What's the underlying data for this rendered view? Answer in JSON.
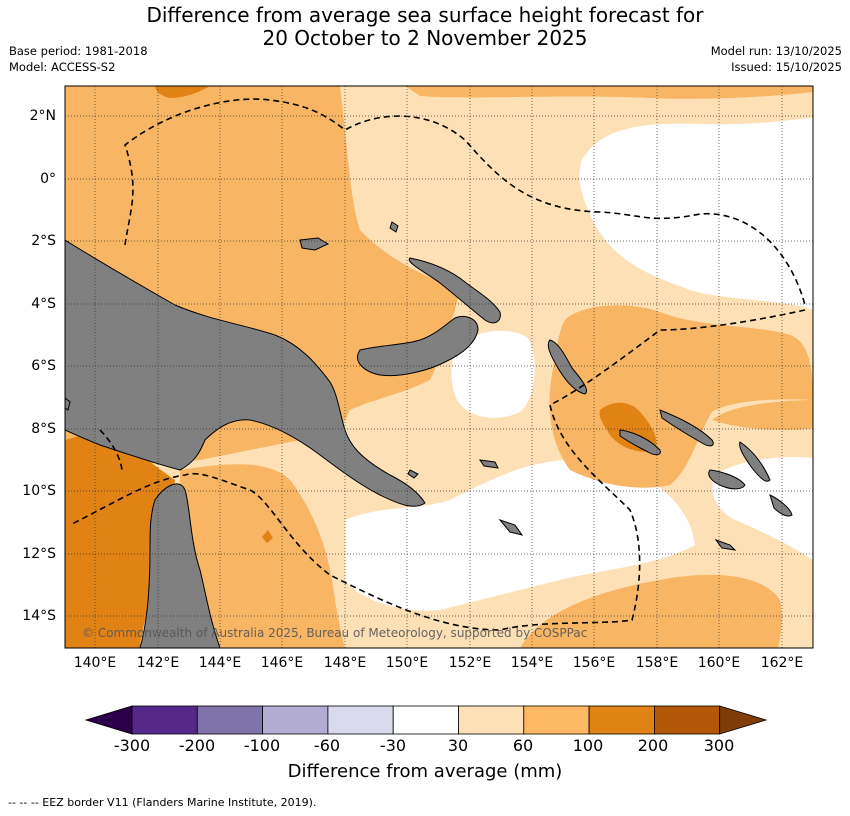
{
  "title": {
    "line1": "Difference from average sea surface height forecast for",
    "line2": "20 October to 2 November 2025"
  },
  "meta_left": {
    "base_period": "Base period: 1981-2018",
    "model": "Model: ACCESS-S2"
  },
  "meta_right": {
    "model_run": "Model run: 13/10/2025",
    "issued": "Issued: 15/10/2025"
  },
  "map": {
    "latitude_labels": [
      "2°N",
      "0°",
      "2°S",
      "4°S",
      "6°S",
      "8°S",
      "10°S",
      "12°S",
      "14°S"
    ],
    "longitude_labels": [
      "140°E",
      "142°E",
      "144°E",
      "146°E",
      "148°E",
      "150°E",
      "152°E",
      "154°E",
      "156°E",
      "158°E",
      "160°E",
      "162°E"
    ],
    "copyright": "© Commonwealth of Australia 2025, Bureau of Meteorology, supported by COSPPac",
    "colors": {
      "land": "#808080",
      "band_30_60": "#fde0b6",
      "band_60_100": "#f8b563",
      "band_100_200": "#e08214",
      "band_200_300": "#b35806"
    }
  },
  "colorbar": {
    "labels": [
      "-300",
      "-200",
      "-100",
      "-60",
      "-30",
      "30",
      "60",
      "100",
      "200",
      "300"
    ],
    "colors": [
      "#2d004b",
      "#542788",
      "#8073ac",
      "#b2abd2",
      "#d8daeb",
      "#ffffff",
      "#fee0b6",
      "#fdb863",
      "#e08214",
      "#b35806",
      "#7f3b08"
    ],
    "title": "Difference from average (mm)"
  },
  "footnote": "--  --  -- EEZ border V11 (Flanders Marine Institute, 2019)."
}
